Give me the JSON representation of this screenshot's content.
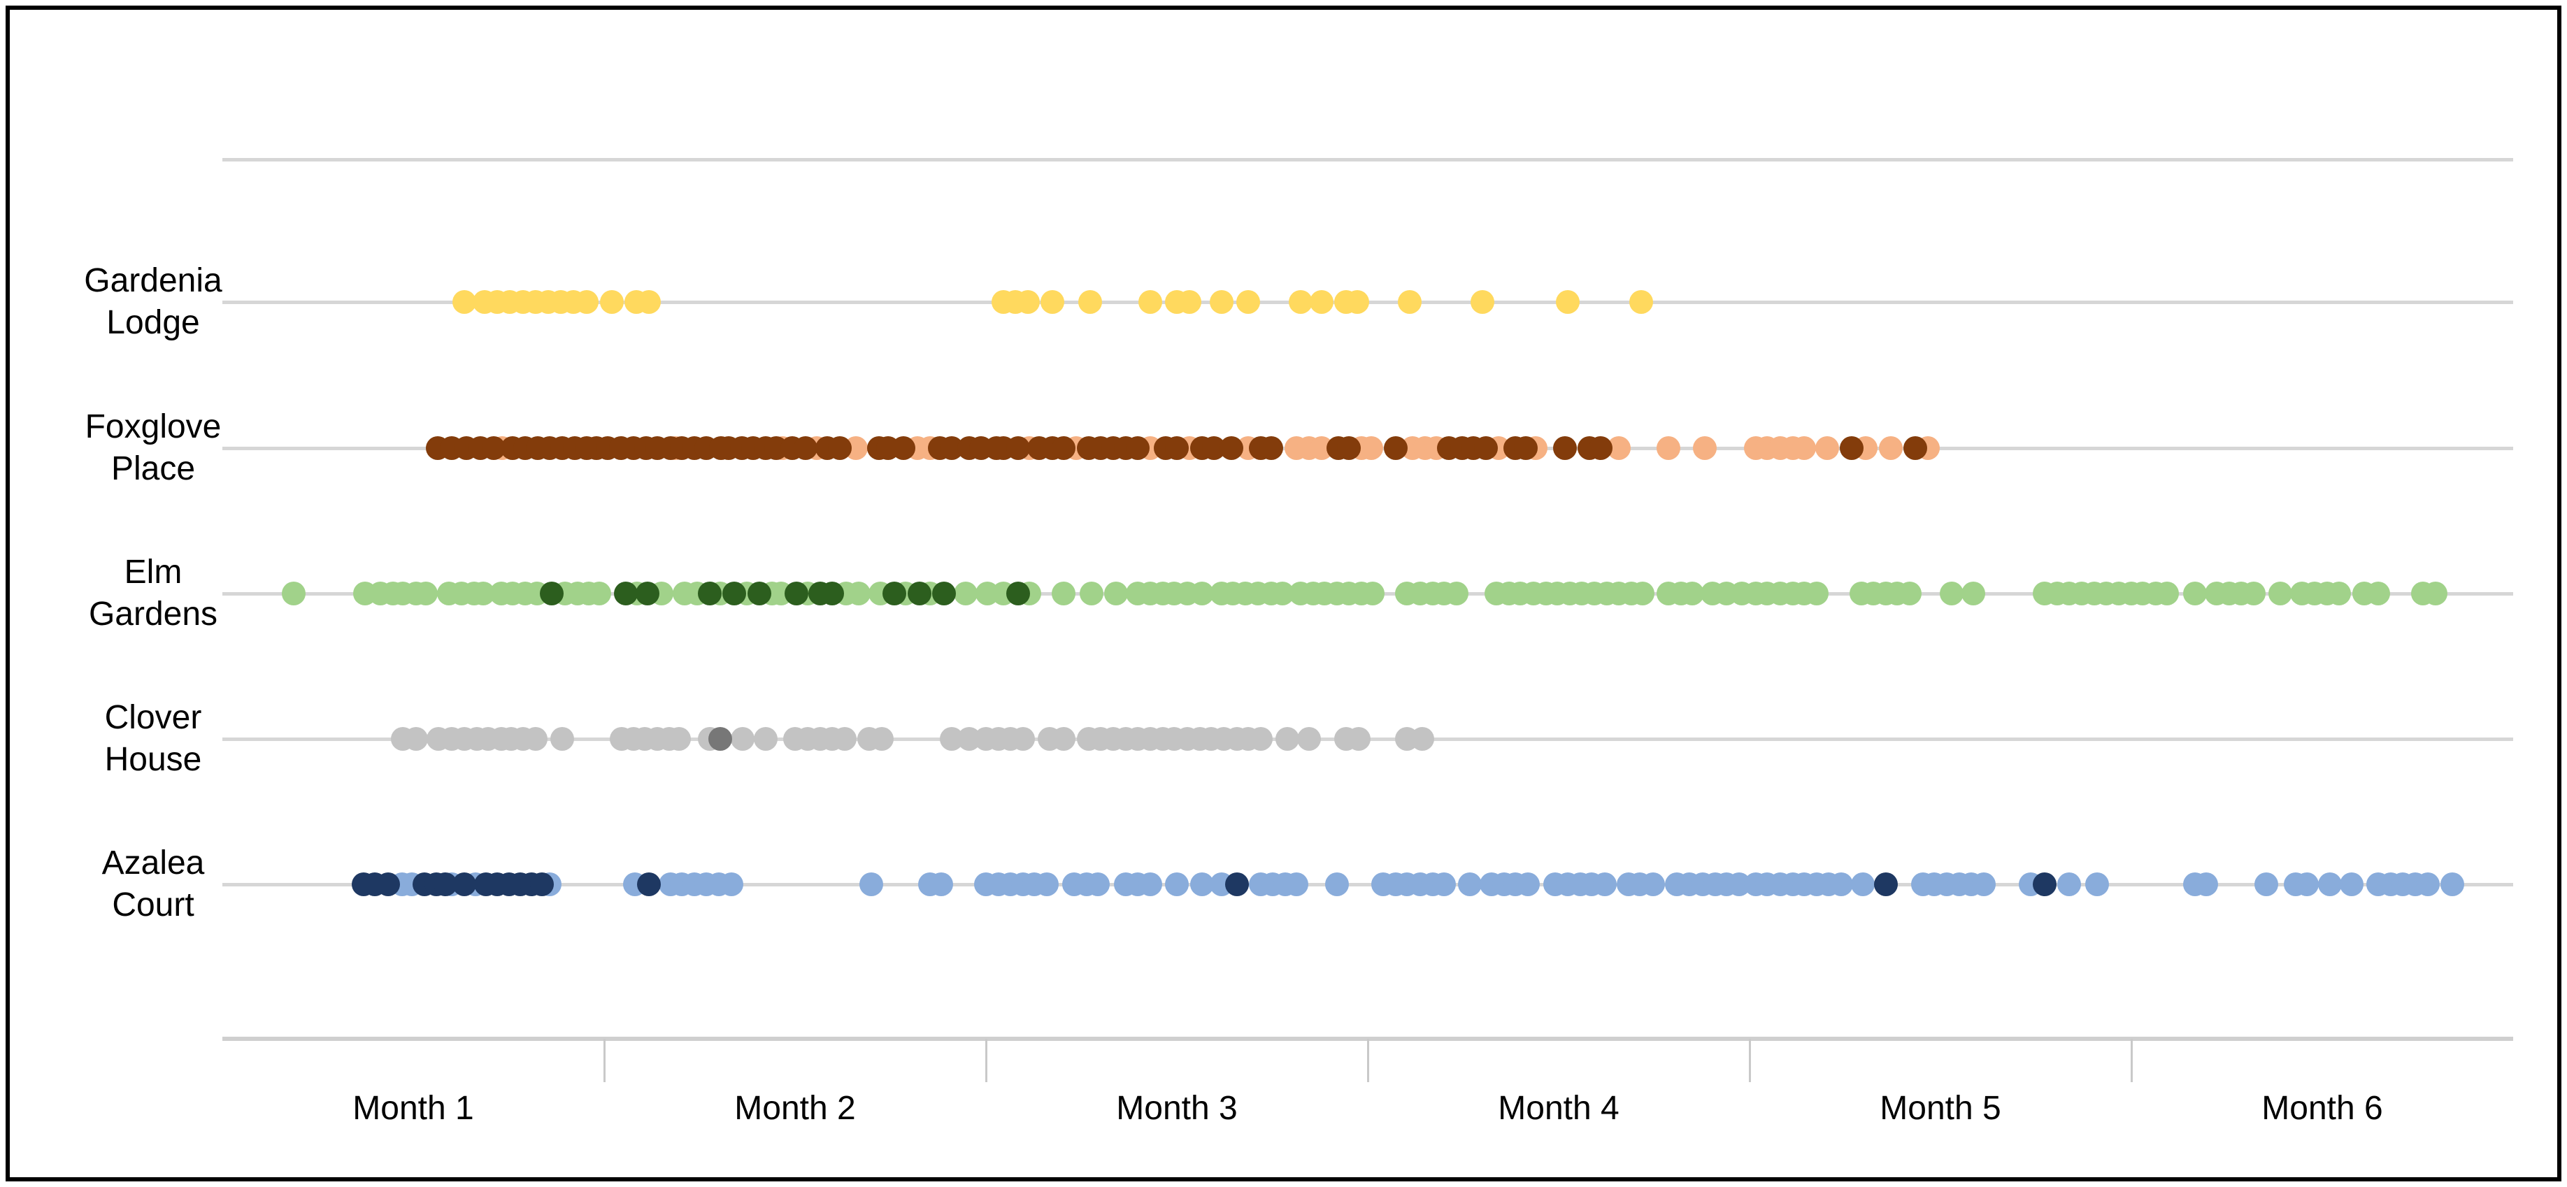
{
  "window": {
    "background": "#FFFFFF",
    "frame_border_color": "#000000"
  },
  "chart_data": {
    "type": "scatter",
    "subtype": "dot-strip-timeline",
    "title": "",
    "grid": "on",
    "grid_color": "#D6D6D6",
    "axis_color": "#CFCFCF",
    "text_color": "#000000",
    "x_axis": {
      "tick_labels": [
        "Month 1",
        "Month 2",
        "Month 3",
        "Month 4",
        "Month 5",
        "Month 6"
      ],
      "range_days": [
        0,
        180
      ],
      "days_per_month": 30,
      "tick_position": "month-boundaries"
    },
    "rows": [
      {
        "label": "Gardenia Lodge",
        "label_lines": [
          "Gardenia",
          "Lodge"
        ],
        "color_light": "#FFD95E",
        "color_dark": "#FFD95E",
        "dots_light_days": [
          19.0,
          20.6,
          21.6,
          22.6,
          23.6,
          24.6,
          25.6,
          26.6,
          27.6,
          28.6,
          30.6,
          32.5,
          33.5,
          61.4,
          62.3,
          63.3,
          65.2,
          68.2,
          72.9,
          75.0,
          76.0,
          78.5,
          80.6,
          84.7,
          86.4,
          88.3,
          89.2,
          93.3,
          99.0,
          105.7,
          111.5
        ],
        "dots_dark_days": []
      },
      {
        "label": "Foxglove Place",
        "label_lines": [
          "Foxglove",
          "Place"
        ],
        "color_light": "#F6B183",
        "color_dark": "#833C0B",
        "dots_light_days": [
          22.0,
          35.6,
          44.0,
          46.7,
          49.8,
          54.6,
          55.6,
          63.4,
          67.1,
          72.9,
          76.0,
          80.6,
          84.4,
          85.4,
          86.4,
          89.5,
          90.3,
          93.5,
          94.5,
          95.4,
          100.3,
          103.2,
          109.7,
          113.6,
          116.5,
          120.5,
          121.4,
          122.4,
          123.4,
          124.3,
          126.1,
          129.1,
          131.1,
          134.0
        ],
        "dots_dark_days": [
          16.9,
          18.0,
          19.2,
          20.3,
          21.3,
          22.8,
          23.8,
          24.8,
          25.7,
          26.7,
          27.7,
          28.6,
          29.4,
          30.3,
          31.3,
          32.3,
          33.3,
          34.2,
          35.2,
          36.1,
          37.1,
          38.0,
          39.2,
          39.8,
          40.8,
          41.7,
          42.7,
          43.5,
          44.8,
          45.8,
          47.5,
          48.5,
          51.6,
          52.3,
          53.5,
          56.4,
          57.3,
          58.7,
          59.6,
          60.8,
          61.4,
          62.5,
          64.2,
          65.2,
          66.1,
          68.1,
          69.0,
          70.0,
          71.0,
          71.9,
          74.1,
          75.0,
          77.0,
          77.9,
          79.3,
          81.6,
          82.4,
          87.7,
          88.5,
          92.2,
          96.4,
          97.4,
          98.3,
          99.3,
          101.6,
          102.4,
          105.5,
          107.4,
          108.3,
          128.0,
          133.0
        ]
      },
      {
        "label": "Elm Gardens",
        "label_lines": [
          "Elm",
          "Gardens"
        ],
        "color_light": "#A1D28A",
        "color_dark": "#2C5E1E",
        "dots_light_days": [
          5.6,
          11.2,
          12.4,
          13.4,
          14.2,
          15.2,
          16.0,
          17.8,
          18.8,
          19.8,
          20.5,
          21.9,
          22.8,
          23.8,
          24.7,
          26.9,
          27.9,
          28.8,
          29.6,
          32.6,
          34.5,
          36.3,
          37.3,
          39.1,
          41.2,
          43.2,
          43.9,
          46.0,
          49.0,
          50.0,
          51.7,
          53.7,
          55.6,
          58.4,
          60.1,
          61.4,
          63.4,
          66.1,
          68.3,
          70.2,
          71.9,
          72.9,
          73.9,
          74.8,
          75.8,
          77.0,
          78.5,
          79.4,
          80.4,
          81.4,
          82.4,
          83.3,
          84.7,
          85.7,
          86.6,
          87.6,
          88.5,
          89.5,
          90.4,
          93.1,
          94.1,
          95.1,
          96.0,
          97.0,
          100.1,
          101.1,
          102.0,
          103.0,
          104.0,
          104.9,
          105.9,
          106.8,
          107.8,
          108.8,
          109.7,
          110.7,
          111.6,
          113.6,
          114.6,
          115.5,
          117.1,
          118.2,
          119.4,
          120.5,
          121.4,
          122.4,
          123.4,
          124.3,
          125.3,
          128.8,
          129.7,
          130.7,
          131.6,
          132.6,
          135.9,
          137.6,
          143.2,
          144.2,
          145.1,
          146.1,
          147.1,
          148.0,
          149.0,
          150.0,
          150.9,
          151.9,
          152.8,
          155.0,
          156.7,
          157.7,
          158.6,
          159.6,
          161.7,
          163.4,
          164.4,
          165.4,
          166.3,
          168.3,
          169.4,
          172.9,
          173.9
        ],
        "dots_dark_days": [
          25.9,
          31.7,
          33.4,
          38.3,
          40.2,
          42.2,
          45.1,
          47.0,
          47.9,
          52.8,
          54.8,
          56.7,
          62.5
        ]
      },
      {
        "label": "Clover House",
        "label_lines": [
          "Clover",
          "House"
        ],
        "color_light": "#C3C3C3",
        "color_dark": "#777777",
        "dots_light_days": [
          14.2,
          15.2,
          17.0,
          18.0,
          19.0,
          20.0,
          20.9,
          21.9,
          22.7,
          23.6,
          24.6,
          26.7,
          31.4,
          32.3,
          33.2,
          34.2,
          35.1,
          35.9,
          38.3,
          40.9,
          42.7,
          45.0,
          46.0,
          47.0,
          47.9,
          48.9,
          50.8,
          51.8,
          57.3,
          58.7,
          60.0,
          61.0,
          61.9,
          62.9,
          65.0,
          66.1,
          68.1,
          69.0,
          70.0,
          71.0,
          71.9,
          72.9,
          73.9,
          74.8,
          75.8,
          76.8,
          77.7,
          78.7,
          79.7,
          80.6,
          81.6,
          83.7,
          85.4,
          88.3,
          89.3,
          93.1,
          94.3
        ],
        "dots_dark_days": [
          39.1
        ]
      },
      {
        "label": "Azalea Court",
        "label_lines": [
          "Azalea",
          "Court"
        ],
        "color_light": "#89ACDB",
        "color_dark": "#1E3862",
        "dots_light_days": [
          14.1,
          14.9,
          18.0,
          19.9,
          25.7,
          32.4,
          35.2,
          36.1,
          37.1,
          38.0,
          39.0,
          40.0,
          51.0,
          55.6,
          56.5,
          60.0,
          61.0,
          61.9,
          62.9,
          63.8,
          64.8,
          66.9,
          67.9,
          68.8,
          71.0,
          71.9,
          72.9,
          75.0,
          77.0,
          78.5,
          81.6,
          82.5,
          83.5,
          84.4,
          87.6,
          91.2,
          92.2,
          93.1,
          94.1,
          95.1,
          96.0,
          98.0,
          99.7,
          100.7,
          101.6,
          102.6,
          104.7,
          105.7,
          106.7,
          107.6,
          108.6,
          110.5,
          111.4,
          112.4,
          114.3,
          115.3,
          116.3,
          117.3,
          118.2,
          119.2,
          120.5,
          121.4,
          122.4,
          123.4,
          124.3,
          125.3,
          126.2,
          127.2,
          128.9,
          133.6,
          134.5,
          135.5,
          136.5,
          137.4,
          138.4,
          142.1,
          145.1,
          147.3,
          155.0,
          155.9,
          160.6,
          162.9,
          163.8,
          165.6,
          167.3,
          169.4,
          170.4,
          171.3,
          172.3,
          173.3,
          175.2
        ],
        "dots_dark_days": [
          11.1,
          12.0,
          13.0,
          15.9,
          16.8,
          17.5,
          19.0,
          20.7,
          21.6,
          22.5,
          23.4,
          24.3,
          25.1,
          33.5,
          79.7,
          130.7,
          143.2
        ]
      }
    ]
  }
}
